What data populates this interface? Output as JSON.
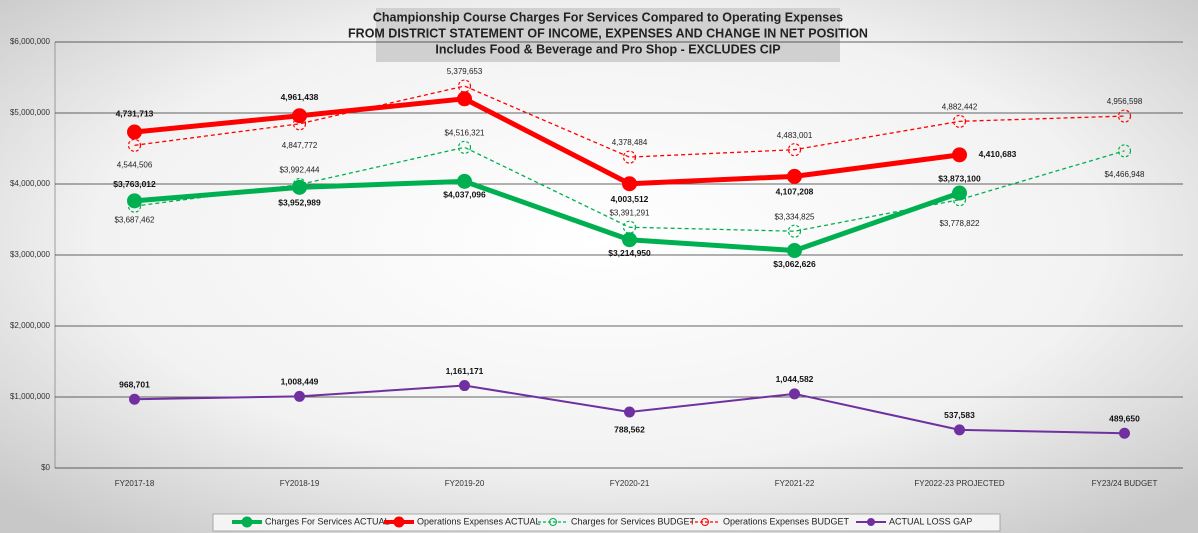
{
  "chart_data": {
    "type": "line",
    "title": "Championship Course Charges For Services Compared to Operating Expenses",
    "subtitle": "FROM DISTRICT STATEMENT OF INCOME, EXPENSES AND CHANGE IN NET POSITION",
    "note": "Includes Food & Beverage and Pro Shop - EXCLUDES CIP",
    "categories": [
      "FY2017-18",
      "FY2018-19",
      "FY2019-20",
      "FY2020-21",
      "FY2021-22",
      "FY2022-23 PROJECTED",
      "FY23/24 BUDGET"
    ],
    "ylim": [
      0,
      6000000
    ],
    "yticks": [
      {
        "value": 0,
        "label": "$0"
      },
      {
        "value": 1000000,
        "label": "$1,000,000"
      },
      {
        "value": 2000000,
        "label": "$2,000,000"
      },
      {
        "value": 3000000,
        "label": "$3,000,000"
      },
      {
        "value": 4000000,
        "label": "$4,000,000"
      },
      {
        "value": 5000000,
        "label": "$5,000,000"
      },
      {
        "value": 6000000,
        "label": "$6,000,000"
      }
    ],
    "grid": true,
    "legend": "bottom",
    "series": [
      {
        "name": "Charges For Services ACTUAL",
        "color": "#00b050",
        "style": "solid-thick",
        "values": [
          3763012,
          3952989,
          4037096,
          3214950,
          3062626,
          3873100,
          null
        ],
        "value_labels": [
          "$3,763,012",
          "$3,952,989",
          "$4,037,096",
          "$3,214,950",
          "$3,062,626",
          "$3,873,100",
          null
        ]
      },
      {
        "name": "Operations Expenses ACTUAL",
        "color": "#ff0000",
        "style": "solid-thick",
        "values": [
          4731713,
          4961438,
          5200000,
          4003512,
          4107208,
          4410683,
          null
        ],
        "value_labels": [
          "4,731,713",
          "4,961,438",
          null,
          "4,003,512",
          "4,107,208",
          "4,410,683",
          null
        ]
      },
      {
        "name": "Charges for Services BUDGET",
        "color": "#00b050",
        "style": "dashed",
        "values": [
          3687462,
          3992444,
          4516321,
          3391291,
          3334825,
          3778822,
          4466948
        ],
        "value_labels": [
          "$3,687,462",
          "$3,992,444",
          "$4,516,321",
          "$3,391,291",
          "$3,334,825",
          "$3,778,822",
          "$4,466,948"
        ]
      },
      {
        "name": "Operations Expenses BUDGET",
        "color": "#ff0000",
        "style": "dashed",
        "values": [
          4544506,
          4847772,
          5379653,
          4378484,
          4483001,
          4882442,
          4956598
        ],
        "value_labels": [
          "4,544,506",
          "4,847,772",
          "5,379,653",
          "4,378,484",
          "4,483,001",
          "4,882,442",
          "4,956,598"
        ]
      },
      {
        "name": "ACTUAL LOSS GAP",
        "color": "#7030a0",
        "style": "solid",
        "values": [
          968701,
          1008449,
          1161171,
          788562,
          1044582,
          537583,
          489650
        ],
        "value_labels": [
          "968,701",
          "1,008,449",
          "1,161,171",
          "788,562",
          "1,044,582",
          "537,583",
          "489,650"
        ]
      }
    ]
  }
}
